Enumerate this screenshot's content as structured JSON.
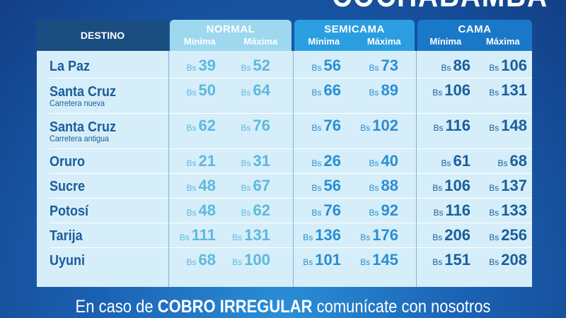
{
  "title": "COCHABAMBA",
  "headers": {
    "destino": "DESTINO",
    "min": "Mínima",
    "max": "Máxima",
    "groups": [
      "NORMAL",
      "SEMICAMA",
      "CAMA"
    ]
  },
  "currency": "Bs",
  "rows": [
    {
      "dest": "La Paz",
      "sub": "",
      "prices": [
        39,
        52,
        56,
        73,
        86,
        106
      ]
    },
    {
      "dest": "Santa Cruz",
      "sub": "Carretera nueva",
      "prices": [
        50,
        64,
        66,
        89,
        106,
        131
      ]
    },
    {
      "dest": "Santa Cruz",
      "sub": "Carretera antigua",
      "prices": [
        62,
        76,
        76,
        102,
        116,
        148
      ]
    },
    {
      "dest": "Oruro",
      "sub": "",
      "prices": [
        21,
        31,
        26,
        40,
        61,
        68
      ]
    },
    {
      "dest": "Sucre",
      "sub": "",
      "prices": [
        48,
        67,
        56,
        88,
        106,
        137
      ]
    },
    {
      "dest": "Potosí",
      "sub": "",
      "prices": [
        48,
        62,
        76,
        92,
        116,
        133
      ]
    },
    {
      "dest": "Tarija",
      "sub": "",
      "prices": [
        111,
        131,
        136,
        176,
        206,
        256
      ]
    },
    {
      "dest": "Uyuni",
      "sub": "",
      "prices": [
        68,
        100,
        101,
        145,
        151,
        208
      ]
    }
  ],
  "footer": {
    "pre": "En caso de ",
    "bold": "COBRO IRREGULAR",
    "post": " comunícate con nosotros"
  },
  "colors": {
    "background": "#1b62b4",
    "table": "#d6eef9",
    "destino_header": "#1a4e80",
    "normal": "#9ed8ef",
    "semicama": "#2a9ee0",
    "cama": "#1a78c9"
  }
}
